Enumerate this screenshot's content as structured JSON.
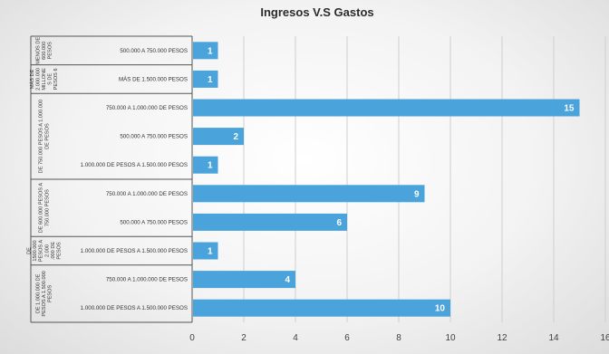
{
  "chart_data": {
    "type": "bar",
    "orientation": "horizontal",
    "title": "Ingresos V.S Gastos",
    "xlim": [
      0,
      16
    ],
    "x_ticks": [
      0,
      2,
      4,
      6,
      8,
      10,
      12,
      14,
      16
    ],
    "grid": true,
    "bar_color": "#4aa3db",
    "groups": [
      {
        "name": "MENOS DE 600.000 PESOS",
        "categories": [
          {
            "label": "500.000 A 750.000 PESOS",
            "value": 1
          }
        ]
      },
      {
        "name": "MÁS DE 2.000.000 MILLONE S DE PESOS 6",
        "categories": [
          {
            "label": "MÁS DE 1.500.000 PESOS",
            "value": 1
          }
        ]
      },
      {
        "name": "DE 750.000 PESOS A 1.000.000 DE PESOS",
        "categories": [
          {
            "label": "750.000 A 1.000.000 DE PESOS",
            "value": 15
          },
          {
            "label": "500.000 A 750.000 PESOS",
            "value": 2
          },
          {
            "label": "1.000.000 DE PESOS A 1.500.000 PESOS",
            "value": 1
          }
        ]
      },
      {
        "name": "DE 600.000 PESOS A 750.000 PESOS",
        "categories": [
          {
            "label": "750.000 A 1.000.000 DE PESOS",
            "value": 9
          },
          {
            "label": "500.000 A 750.000 PESOS",
            "value": 6
          }
        ]
      },
      {
        "name": "DE 1500.000 PESOS A 2.000 .000 DE PESOS",
        "categories": [
          {
            "label": "1.000.000 DE PESOS A 1.500.000 PESOS",
            "value": 1
          }
        ]
      },
      {
        "name": "DE 1.000.000 DE PESOS A 1.500.000 PESOS",
        "categories": [
          {
            "label": "750.000 A 1.000.000 DE PESOS",
            "value": 4
          },
          {
            "label": "1.000.000 DE PESOS A 1.500.000 PESOS",
            "value": 10
          }
        ]
      }
    ]
  }
}
